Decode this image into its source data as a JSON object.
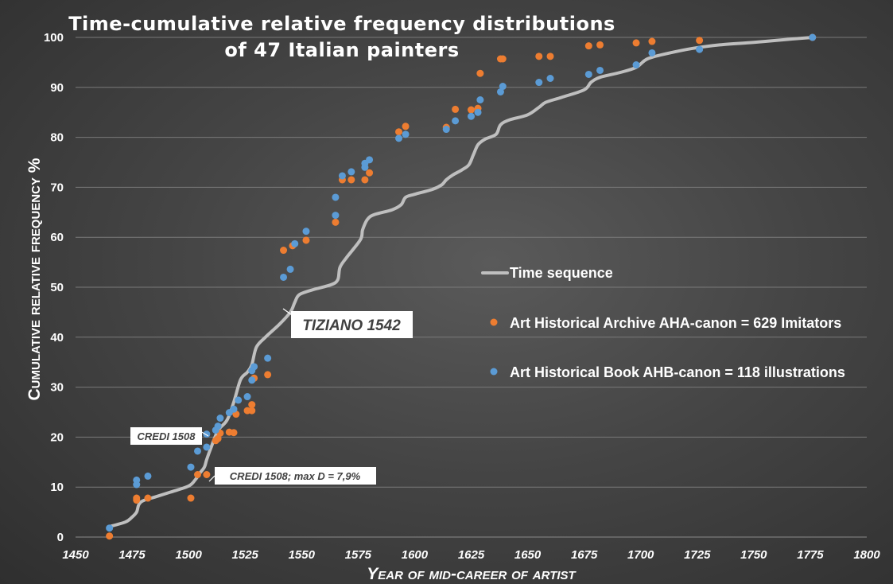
{
  "chart_data": {
    "type": "scatter",
    "title_line1": "Time-cumulative relative frequency distributions",
    "title_line2": "of 47 Italian painters",
    "xlabel": "Year of mid-career of artist",
    "ylabel": "Cumulative relative frequency %",
    "xlim": [
      1450,
      1800
    ],
    "ylim": [
      0,
      100
    ],
    "xticks": [
      1450,
      1475,
      1500,
      1525,
      1550,
      1575,
      1600,
      1625,
      1650,
      1675,
      1700,
      1725,
      1750,
      1775,
      1800
    ],
    "yticks": [
      0,
      10,
      20,
      30,
      40,
      50,
      60,
      70,
      80,
      90,
      100
    ],
    "grid": "horizontal",
    "legend_position": "right-middle",
    "colors": {
      "line": "#bfbfbf",
      "aha": "#ed7d31",
      "ahb": "#5b9bd5",
      "text": "#ffffff",
      "annotation_box": "#ffffff",
      "annotation_text": "#404040"
    },
    "series": [
      {
        "name": "Time sequence",
        "kind": "line",
        "points": [
          [
            1465,
            2.1
          ],
          [
            1472,
            3.0
          ],
          [
            1475,
            4.0
          ],
          [
            1477,
            5.0
          ],
          [
            1478,
            6.5
          ],
          [
            1480,
            7.3
          ],
          [
            1485,
            8.0
          ],
          [
            1492,
            9.0
          ],
          [
            1500,
            10.2
          ],
          [
            1503,
            11.5
          ],
          [
            1505,
            12.8
          ],
          [
            1507,
            14.0
          ],
          [
            1508,
            15.5
          ],
          [
            1510,
            18.0
          ],
          [
            1513,
            21.3
          ],
          [
            1517,
            23.4
          ],
          [
            1520,
            27.0
          ],
          [
            1523,
            31.5
          ],
          [
            1526,
            33.0
          ],
          [
            1528,
            34.5
          ],
          [
            1530,
            38.0
          ],
          [
            1534,
            40.0
          ],
          [
            1540,
            42.5
          ],
          [
            1545,
            45.0
          ],
          [
            1547,
            47.0
          ],
          [
            1549,
            48.5
          ],
          [
            1555,
            49.5
          ],
          [
            1563,
            50.5
          ],
          [
            1566,
            51.5
          ],
          [
            1567,
            54.0
          ],
          [
            1570,
            56.0
          ],
          [
            1576,
            59.5
          ],
          [
            1577,
            61.5
          ],
          [
            1579,
            63.5
          ],
          [
            1582,
            64.5
          ],
          [
            1590,
            65.5
          ],
          [
            1594,
            66.5
          ],
          [
            1596,
            68.0
          ],
          [
            1600,
            68.6
          ],
          [
            1608,
            69.6
          ],
          [
            1612,
            70.5
          ],
          [
            1614,
            71.5
          ],
          [
            1617,
            72.5
          ],
          [
            1621,
            73.5
          ],
          [
            1624,
            74.5
          ],
          [
            1626,
            76.5
          ],
          [
            1628,
            78.5
          ],
          [
            1631,
            79.6
          ],
          [
            1636,
            80.6
          ],
          [
            1638,
            82.5
          ],
          [
            1642,
            83.5
          ],
          [
            1650,
            84.5
          ],
          [
            1655,
            86.0
          ],
          [
            1658,
            87.0
          ],
          [
            1665,
            88.0
          ],
          [
            1675,
            89.5
          ],
          [
            1678,
            91.0
          ],
          [
            1682,
            92.0
          ],
          [
            1691,
            93.0
          ],
          [
            1698,
            94.0
          ],
          [
            1703,
            95.7
          ],
          [
            1712,
            96.8
          ],
          [
            1723,
            97.8
          ],
          [
            1735,
            98.5
          ],
          [
            1750,
            99.0
          ],
          [
            1765,
            99.6
          ],
          [
            1776,
            100
          ]
        ]
      },
      {
        "name": "Art Historical Archive AHA-canon = 629 Imitators",
        "kind": "scatter",
        "points": [
          [
            1465,
            0.2
          ],
          [
            1477,
            7.4
          ],
          [
            1477,
            7.8
          ],
          [
            1482,
            7.8
          ],
          [
            1501,
            7.8
          ],
          [
            1504,
            12.5
          ],
          [
            1508,
            12.5
          ],
          [
            1512,
            19.3
          ],
          [
            1513,
            19.7
          ],
          [
            1514,
            20.8
          ],
          [
            1518,
            21.0
          ],
          [
            1520,
            20.9
          ],
          [
            1521,
            24.6
          ],
          [
            1526,
            25.3
          ],
          [
            1528,
            25.3
          ],
          [
            1528,
            26.5
          ],
          [
            1529,
            31.8
          ],
          [
            1535,
            32.5
          ],
          [
            1542,
            57.4
          ],
          [
            1546,
            58.3
          ],
          [
            1552,
            59.4
          ],
          [
            1565,
            63.0
          ],
          [
            1568,
            71.5
          ],
          [
            1572,
            71.5
          ],
          [
            1578,
            71.5
          ],
          [
            1580,
            72.9
          ],
          [
            1593,
            81.1
          ],
          [
            1596,
            82.2
          ],
          [
            1614,
            82.0
          ],
          [
            1618,
            85.6
          ],
          [
            1625,
            85.5
          ],
          [
            1628,
            85.8
          ],
          [
            1629,
            92.8
          ],
          [
            1638,
            95.7
          ],
          [
            1639,
            95.7
          ],
          [
            1655,
            96.2
          ],
          [
            1660,
            96.2
          ],
          [
            1677,
            98.3
          ],
          [
            1682,
            98.5
          ],
          [
            1698,
            98.9
          ],
          [
            1705,
            99.2
          ],
          [
            1726,
            99.4
          ],
          [
            1776,
            100
          ]
        ]
      },
      {
        "name": "Art Historical Book AHB-canon = 118 illustrations",
        "kind": "scatter",
        "points": [
          [
            1465,
            1.8
          ],
          [
            1477,
            10.5
          ],
          [
            1477,
            11.4
          ],
          [
            1482,
            12.2
          ],
          [
            1501,
            14.0
          ],
          [
            1504,
            17.2
          ],
          [
            1508,
            18.0
          ],
          [
            1508,
            20.6
          ],
          [
            1512,
            21.4
          ],
          [
            1513,
            22.2
          ],
          [
            1514,
            23.8
          ],
          [
            1518,
            24.9
          ],
          [
            1520,
            25.6
          ],
          [
            1522,
            27.4
          ],
          [
            1526,
            28.1
          ],
          [
            1528,
            31.4
          ],
          [
            1528,
            33.3
          ],
          [
            1529,
            34.1
          ],
          [
            1535,
            35.8
          ],
          [
            1542,
            52.0
          ],
          [
            1545,
            53.6
          ],
          [
            1547,
            58.7
          ],
          [
            1552,
            61.2
          ],
          [
            1565,
            64.4
          ],
          [
            1565,
            68.0
          ],
          [
            1568,
            72.3
          ],
          [
            1572,
            73.1
          ],
          [
            1578,
            74.0
          ],
          [
            1578,
            74.8
          ],
          [
            1580,
            75.5
          ],
          [
            1593,
            79.8
          ],
          [
            1596,
            80.6
          ],
          [
            1614,
            81.6
          ],
          [
            1618,
            83.3
          ],
          [
            1625,
            84.2
          ],
          [
            1628,
            85.0
          ],
          [
            1629,
            87.5
          ],
          [
            1638,
            89.1
          ],
          [
            1639,
            90.2
          ],
          [
            1655,
            91.0
          ],
          [
            1660,
            91.8
          ],
          [
            1677,
            92.6
          ],
          [
            1682,
            93.4
          ],
          [
            1698,
            94.5
          ],
          [
            1705,
            96.9
          ],
          [
            1726,
            97.6
          ],
          [
            1776,
            100
          ]
        ]
      }
    ],
    "annotations": [
      {
        "text": "TIZIANO 1542"
      },
      {
        "text": "CREDI 1508"
      },
      {
        "text": "CREDI 1508; max D = 7,9%"
      }
    ]
  }
}
